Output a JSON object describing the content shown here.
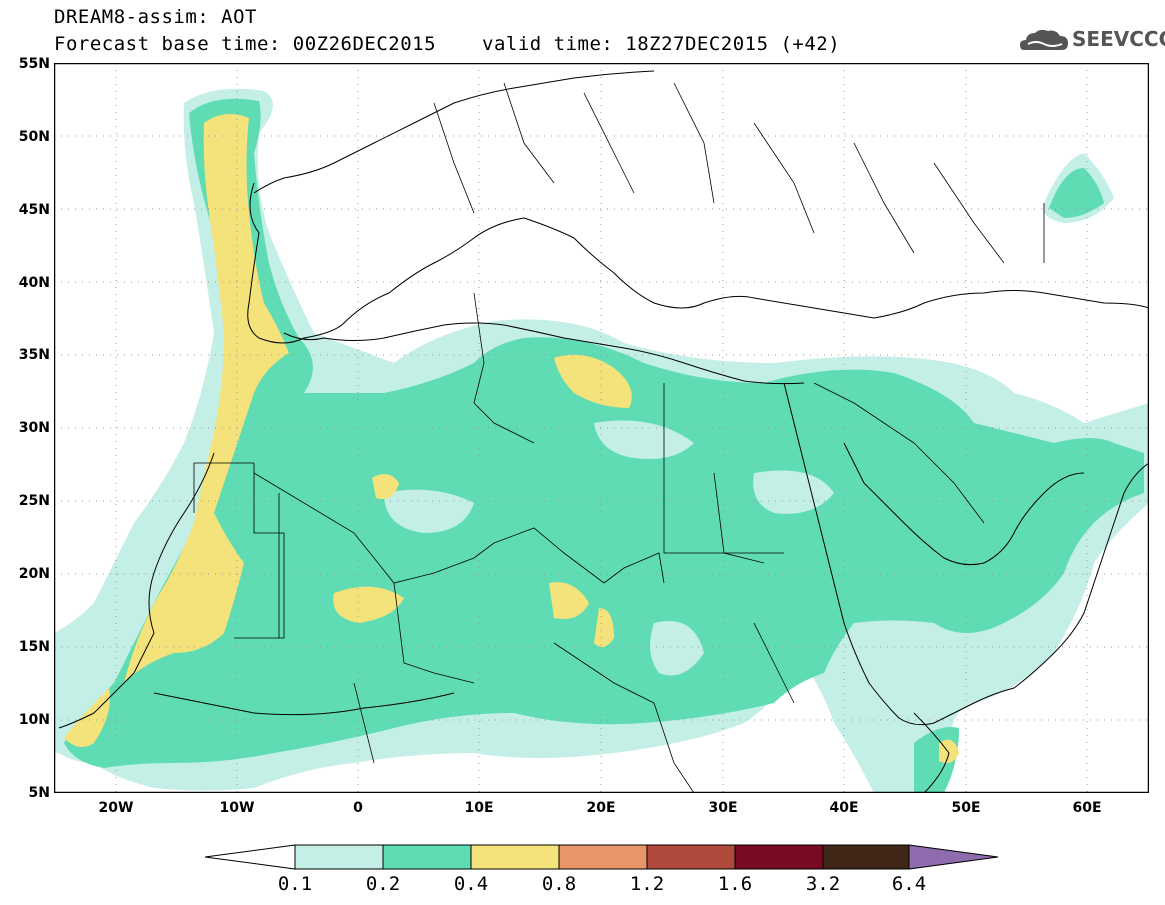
{
  "header": {
    "title": "DREAM8-assim: AOT",
    "base_time": "Forecast base time: 00Z26DEC2015",
    "valid_time": "valid time: 18Z27DEC2015 (+42)",
    "logo_text": "SEEVCCC"
  },
  "map": {
    "lon_range": [
      -25,
      65
    ],
    "lat_range": [
      5,
      55
    ],
    "lat_labels": [
      "55N",
      "50N",
      "45N",
      "40N",
      "35N",
      "30N",
      "25N",
      "20N",
      "15N",
      "10N",
      "5N"
    ],
    "lon_labels": [
      "20W",
      "10W",
      "0",
      "10E",
      "20E",
      "30E",
      "40E",
      "50E",
      "60E"
    ]
  },
  "legend": {
    "colors": [
      "#ffffff",
      "#c4efe6",
      "#5fdcb4",
      "#f4e27a",
      "#e8956a",
      "#b04a3c",
      "#7a0a22",
      "#3f2616",
      "#8e6cae"
    ],
    "labels": [
      "0.1",
      "0.2",
      "0.4",
      "0.8",
      "1.2",
      "1.6",
      "3.2",
      "6.4"
    ]
  }
}
